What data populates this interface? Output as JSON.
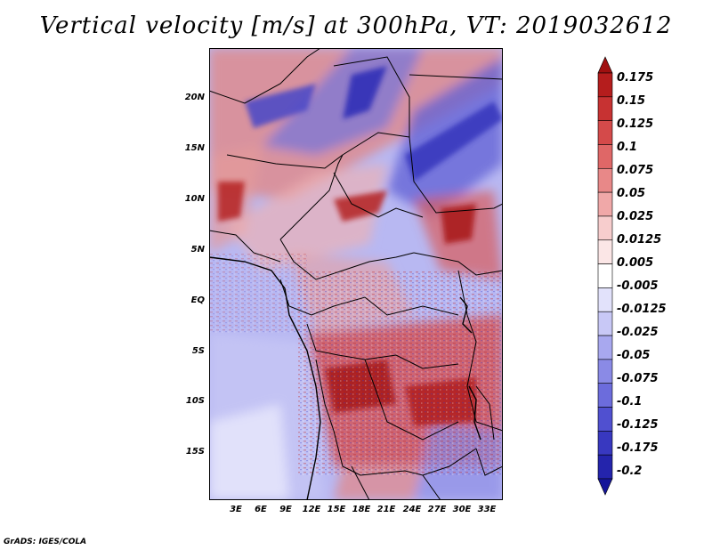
{
  "title": "Vertical velocity [m/s] at 300hPa, VT: 2019032612",
  "credit": "GrADS: IGES/COLA",
  "lat_labels": [
    "20N",
    "15N",
    "10N",
    "5N",
    "EQ",
    "5S",
    "10S",
    "15S"
  ],
  "lon_labels": [
    "3E",
    "6E",
    "9E",
    "12E",
    "15E",
    "18E",
    "21E",
    "24E",
    "27E",
    "30E",
    "33E"
  ],
  "colorbar": {
    "labels": [
      "0.175",
      "0.15",
      "0.125",
      "0.1",
      "0.075",
      "0.05",
      "0.025",
      "0.0125",
      "0.005",
      "-0.005",
      "-0.0125",
      "-0.025",
      "-0.05",
      "-0.075",
      "-0.1",
      "-0.125",
      "-0.175",
      "-0.2"
    ],
    "colors": [
      "#a01010",
      "#b51d1d",
      "#c73232",
      "#d44a4a",
      "#df6767",
      "#e88888",
      "#f0a8a8",
      "#f7cdcd",
      "#fbe6e6",
      "#ffffff",
      "#e2e2fb",
      "#c8c8f6",
      "#a8a8ef",
      "#8a8ae6",
      "#6c6cdc",
      "#5050d0",
      "#3838c0",
      "#2424ac",
      "#16169a"
    ]
  }
}
